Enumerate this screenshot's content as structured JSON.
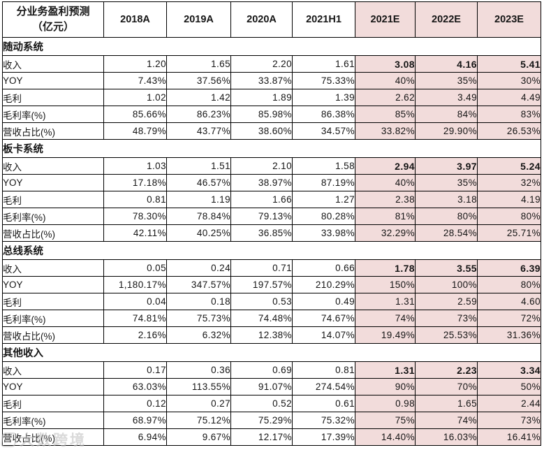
{
  "table": {
    "title_line1": "分业务盈利预测",
    "title_line2": "（亿元）",
    "estimate_bg": "#f2dcdb",
    "columns": [
      {
        "label": "2018A",
        "estimate": false
      },
      {
        "label": "2019A",
        "estimate": false
      },
      {
        "label": "2020A",
        "estimate": false
      },
      {
        "label": "2021H1",
        "estimate": false
      },
      {
        "label": "2021E",
        "estimate": true
      },
      {
        "label": "2022E",
        "estimate": true
      },
      {
        "label": "2023E",
        "estimate": true
      }
    ],
    "sections": [
      {
        "name": "随动系统",
        "rows": [
          {
            "label": "收入",
            "bold_estimates": true,
            "values": [
              "1.20",
              "1.65",
              "2.20",
              "1.61",
              "3.08",
              "4.16",
              "5.41"
            ]
          },
          {
            "label": "YOY",
            "bold_estimates": false,
            "values": [
              "7.43%",
              "37.56%",
              "33.87%",
              "75.33%",
              "40%",
              "35%",
              "30%"
            ]
          },
          {
            "label": "毛利",
            "bold_estimates": false,
            "values": [
              "1.02",
              "1.42",
              "1.89",
              "1.39",
              "2.62",
              "3.49",
              "4.49"
            ]
          },
          {
            "label": "毛利率(%)",
            "bold_estimates": false,
            "values": [
              "85.66%",
              "86.23%",
              "85.98%",
              "86.38%",
              "85%",
              "84%",
              "83%"
            ]
          },
          {
            "label": "营收占比(%)",
            "bold_estimates": false,
            "values": [
              "48.79%",
              "43.77%",
              "38.60%",
              "34.57%",
              "33.82%",
              "29.90%",
              "26.53%"
            ]
          }
        ]
      },
      {
        "name": "板卡系统",
        "rows": [
          {
            "label": "收入",
            "bold_estimates": true,
            "values": [
              "1.03",
              "1.51",
              "2.10",
              "1.58",
              "2.94",
              "3.97",
              "5.24"
            ]
          },
          {
            "label": "YOY",
            "bold_estimates": false,
            "values": [
              "17.18%",
              "46.57%",
              "38.97%",
              "87.19%",
              "40%",
              "35%",
              "32%"
            ]
          },
          {
            "label": "毛利",
            "bold_estimates": false,
            "values": [
              "0.81",
              "1.19",
              "1.66",
              "1.27",
              "2.38",
              "3.18",
              "4.19"
            ]
          },
          {
            "label": "毛利率(%)",
            "bold_estimates": false,
            "values": [
              "78.30%",
              "78.84%",
              "79.13%",
              "80.28%",
              "81%",
              "80%",
              "80%"
            ]
          },
          {
            "label": "营收占比(%)",
            "bold_estimates": false,
            "values": [
              "42.11%",
              "40.25%",
              "36.85%",
              "33.98%",
              "32.29%",
              "28.54%",
              "25.71%"
            ]
          }
        ]
      },
      {
        "name": "总线系统",
        "rows": [
          {
            "label": "收入",
            "bold_estimates": true,
            "values": [
              "0.05",
              "0.24",
              "0.71",
              "0.66",
              "1.78",
              "3.55",
              "6.39"
            ]
          },
          {
            "label": "YOY",
            "bold_estimates": false,
            "values": [
              "1,180.17%",
              "347.57%",
              "197.57%",
              "210.29%",
              "150%",
              "100%",
              "80%"
            ]
          },
          {
            "label": "毛利",
            "bold_estimates": false,
            "values": [
              "0.04",
              "0.18",
              "0.53",
              "0.49",
              "1.31",
              "2.59",
              "4.60"
            ]
          },
          {
            "label": "毛利率(%)",
            "bold_estimates": false,
            "values": [
              "74.81%",
              "75.73%",
              "74.48%",
              "74.67%",
              "74%",
              "73%",
              "72%"
            ]
          },
          {
            "label": "营收占比(%)",
            "bold_estimates": false,
            "values": [
              "2.16%",
              "6.32%",
              "12.38%",
              "14.07%",
              "19.49%",
              "25.53%",
              "31.36%"
            ]
          }
        ]
      },
      {
        "name": "其他收入",
        "rows": [
          {
            "label": "收入",
            "bold_estimates": true,
            "values": [
              "0.17",
              "0.36",
              "0.69",
              "0.81",
              "1.31",
              "2.23",
              "3.34"
            ]
          },
          {
            "label": "YOY",
            "bold_estimates": false,
            "values": [
              "63.03%",
              "113.55%",
              "91.07%",
              "274.54%",
              "90%",
              "70%",
              "50%"
            ]
          },
          {
            "label": "毛利",
            "bold_estimates": false,
            "values": [
              "0.12",
              "0.27",
              "0.52",
              "0.61",
              "0.98",
              "1.65",
              "2.44"
            ]
          },
          {
            "label": "毛利率(%)",
            "bold_estimates": false,
            "values": [
              "68.97%",
              "75.12%",
              "75.29%",
              "75.32%",
              "75%",
              "74%",
              "73%"
            ]
          },
          {
            "label": "营收占比(%)",
            "bold_estimates": false,
            "values": [
              "6.94%",
              "9.67%",
              "12.17%",
              "17.39%",
              "14.40%",
              "16.03%",
              "16.41%"
            ]
          }
        ]
      }
    ]
  },
  "watermark": {
    "text": "大数跨境"
  }
}
